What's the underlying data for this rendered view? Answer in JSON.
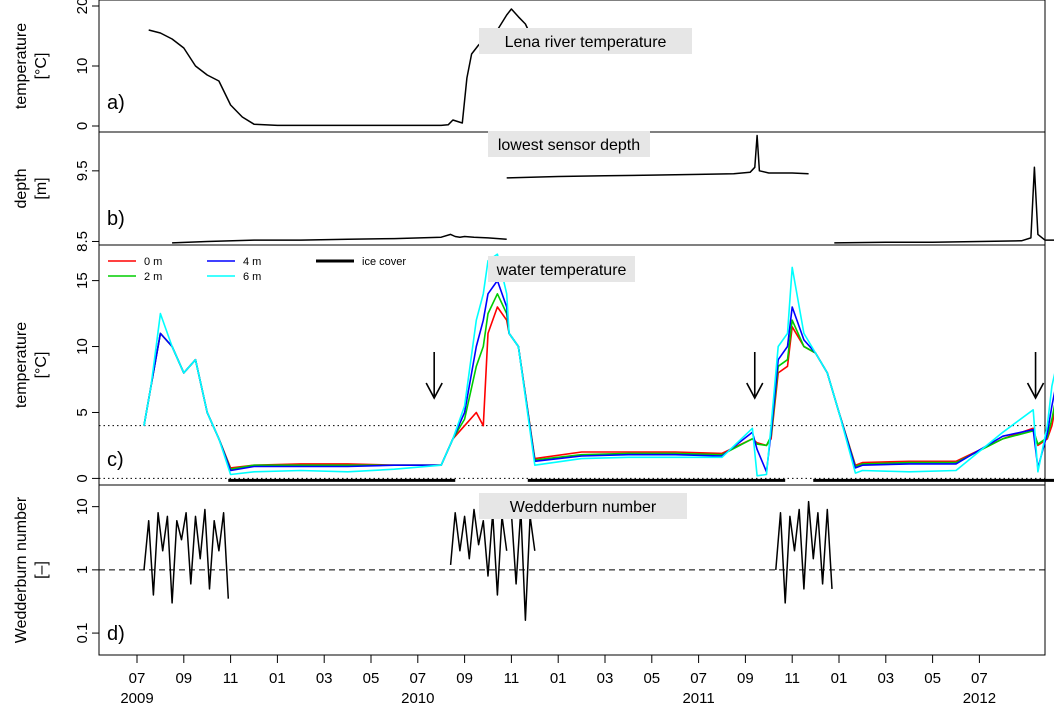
{
  "chart_data": [
    {
      "panel": "a)",
      "type": "line",
      "title": "Lena river temperature",
      "ylabel_lines": [
        "temperature",
        "[°C]"
      ],
      "yticks": [
        "0",
        "10",
        "20"
      ],
      "ylim": [
        -1,
        21
      ],
      "series": [
        {
          "color": "#000000",
          "x": [
            6.5,
            7.0,
            7.5,
            8.0,
            8.5,
            9.0,
            9.5,
            10.0,
            10.5,
            11.0,
            12.0,
            14.0,
            16.0,
            18.0,
            19.0,
            19.3,
            19.5,
            19.9,
            20.1,
            20.3,
            20.6,
            21.0,
            21.4,
            21.8,
            22.0,
            22.3,
            22.6,
            22.9
          ],
          "y": [
            16,
            15.5,
            14.5,
            13,
            10,
            8.5,
            7.5,
            3.5,
            1.5,
            0.3,
            0.1,
            0.1,
            0.1,
            0.1,
            0.1,
            0.2,
            1.0,
            0.5,
            8,
            12,
            13.5,
            15,
            16,
            18.5,
            19.5,
            18.2,
            17,
            14.5
          ]
        }
      ]
    },
    {
      "panel": "b)",
      "type": "line",
      "title": "lowest sensor depth",
      "ylabel_lines": [
        "depth",
        "[m]"
      ],
      "yticks": [
        "8.5",
        "9.5"
      ],
      "ylim": [
        8.45,
        10.05
      ],
      "series": [
        {
          "color": "#000000",
          "x": [
            7.5,
            9,
            11,
            13,
            15,
            17,
            19,
            19.4,
            19.6,
            19.8,
            20.0,
            20.4,
            21,
            21.8
          ],
          "y": [
            8.48,
            8.5,
            8.52,
            8.52,
            8.53,
            8.54,
            8.56,
            8.6,
            8.57,
            8.56,
            8.57,
            8.56,
            8.55,
            8.53
          ]
        },
        {
          "color": "#000000",
          "x": [
            21.8,
            24,
            26,
            28,
            30,
            31.5,
            32.2,
            32.4,
            32.5,
            32.6,
            33,
            34,
            34.7
          ],
          "y": [
            9.4,
            9.42,
            9.43,
            9.44,
            9.45,
            9.46,
            9.48,
            9.55,
            10.0,
            9.5,
            9.47,
            9.47,
            9.46
          ]
        },
        {
          "color": "#000000",
          "x": [
            35.8,
            38,
            40,
            42,
            43.8,
            44.2,
            44.35,
            44.5,
            44.8,
            46,
            47.4
          ],
          "y": [
            8.48,
            8.49,
            8.49,
            8.5,
            8.51,
            8.55,
            9.55,
            8.6,
            8.52,
            8.52,
            8.51
          ]
        }
      ]
    },
    {
      "panel": "c)",
      "type": "line",
      "title": "water temperature",
      "ylabel_lines": [
        "temperature",
        "[°C]"
      ],
      "yticks": [
        "0",
        "5",
        "10",
        "15"
      ],
      "ylim": [
        -0.5,
        17.7
      ],
      "hlines": [
        0,
        4
      ],
      "arrows_x": [
        18.7,
        32.4,
        44.4
      ],
      "ice_cover": [
        [
          9.9,
          19.6
        ],
        [
          22.7,
          33.7
        ],
        [
          34.9,
          45.7
        ]
      ],
      "legend": [
        {
          "label": "0 m",
          "color": "#ff0000"
        },
        {
          "label": "2 m",
          "color": "#00cd00"
        },
        {
          "label": "4 m",
          "color": "#0000ff"
        },
        {
          "label": "6 m",
          "color": "#00ffff"
        },
        {
          "label": "ice cover",
          "color": "#000000"
        }
      ],
      "series": [
        {
          "name": "0 m",
          "color": "#ff0000",
          "x": [
            6.3,
            6.6,
            7.0,
            7.5,
            8.0,
            8.5,
            9.0,
            9.5,
            10.0,
            11,
            13,
            15,
            17,
            19.0,
            19.5,
            20.0,
            20.5,
            20.8,
            21.0,
            21.4,
            21.8,
            21.9,
            22.3,
            23.0,
            25,
            27,
            29,
            31,
            32.3,
            32.5,
            32.9,
            33.1,
            33.4,
            33.8,
            34.0,
            34.5,
            35.0,
            35.5,
            36.0,
            36.7,
            37,
            39,
            41,
            43,
            44.3,
            44.5,
            44.9,
            45.1,
            45.6,
            46.0,
            46.6,
            47.0,
            47.4
          ],
          "y": [
            4,
            7,
            11,
            10,
            8,
            9,
            5,
            3,
            0.8,
            1.0,
            1.1,
            1.1,
            1.0,
            1.0,
            3.0,
            4.0,
            5.0,
            4.0,
            11,
            13,
            12,
            11,
            10,
            1.5,
            2.0,
            2.0,
            2.0,
            1.9,
            3.0,
            2.7,
            2.5,
            3.0,
            8,
            8.5,
            11.5,
            10,
            9.5,
            8,
            5,
            1.0,
            1.2,
            1.3,
            1.3,
            3.0,
            3.8,
            2.5,
            3.0,
            4.0,
            8.5,
            11,
            12.5,
            12.5,
            11.0
          ]
        },
        {
          "name": "2 m",
          "color": "#00cd00",
          "x": [
            6.3,
            6.6,
            7.0,
            7.5,
            8.0,
            8.5,
            9.0,
            9.5,
            10.0,
            11,
            13,
            15,
            17,
            19.0,
            19.5,
            20.0,
            20.5,
            20.8,
            21.0,
            21.4,
            21.8,
            21.9,
            22.3,
            23.0,
            25,
            27,
            29,
            31,
            32.3,
            32.5,
            32.9,
            33.1,
            33.4,
            33.8,
            34.0,
            34.5,
            35.0,
            35.5,
            36.0,
            36.7,
            37,
            39,
            41,
            43,
            44.3,
            44.5,
            44.9,
            45.1,
            45.6,
            46.0,
            46.6,
            47.0,
            47.4
          ],
          "y": [
            4,
            7,
            11,
            10,
            8,
            9,
            5,
            3,
            0.7,
            1.0,
            1.0,
            1.0,
            1.0,
            1.0,
            3.0,
            4.5,
            8.5,
            10,
            12.5,
            14,
            12.5,
            11,
            10,
            1.4,
            1.8,
            1.9,
            1.9,
            1.8,
            3.0,
            2.6,
            2.5,
            3.2,
            8.5,
            9,
            12,
            10,
            9.5,
            8,
            5,
            0.9,
            1.1,
            1.2,
            1.2,
            3.0,
            3.6,
            2.6,
            3.1,
            4.5,
            9,
            11.5,
            13,
            12.5,
            11.0
          ]
        },
        {
          "name": "4 m",
          "color": "#0000ff",
          "x": [
            6.3,
            6.6,
            7.0,
            7.5,
            8.0,
            8.5,
            9.0,
            9.5,
            10.0,
            11,
            13,
            15,
            17,
            19.0,
            19.5,
            20.0,
            20.5,
            20.8,
            21.0,
            21.4,
            21.8,
            21.9,
            22.3,
            23.0,
            25,
            27,
            29,
            31,
            32.3,
            32.5,
            32.9,
            33.1,
            33.4,
            33.8,
            34.0,
            34.5,
            35.0,
            35.5,
            36.0,
            36.7,
            37,
            39,
            41,
            43,
            44.3,
            44.5,
            44.9,
            45.1,
            45.6,
            46.0,
            46.6,
            47.0,
            47.4
          ],
          "y": [
            4,
            7,
            11,
            10,
            8,
            9,
            5,
            3,
            0.6,
            0.9,
            0.9,
            0.9,
            1.0,
            1.0,
            3.0,
            5.0,
            10,
            12,
            14,
            15,
            13,
            11,
            10,
            1.3,
            1.7,
            1.8,
            1.8,
            1.7,
            3.5,
            2.2,
            0.5,
            3.5,
            9,
            10,
            13,
            10.5,
            9.5,
            8,
            5,
            0.8,
            1.0,
            1.1,
            1.1,
            3.2,
            3.7,
            0.8,
            3.4,
            5.5,
            10,
            12.5,
            13.5,
            12.5,
            11.0
          ]
        },
        {
          "name": "6 m",
          "color": "#00ffff",
          "x": [
            6.3,
            6.6,
            7.0,
            7.5,
            8.0,
            8.5,
            9.0,
            9.5,
            10.0,
            11,
            13,
            15,
            17,
            19.0,
            19.5,
            20.0,
            20.5,
            20.8,
            21.0,
            21.4,
            21.8,
            21.9,
            22.3,
            23.0,
            25,
            27,
            29,
            31,
            32.3,
            32.5,
            32.9,
            33.1,
            33.4,
            33.8,
            34.0,
            34.5,
            35.0,
            35.5,
            36.0,
            36.7,
            37,
            39,
            41,
            43,
            44.3,
            44.5,
            44.9,
            45.1,
            45.6,
            46.0,
            46.6,
            47.0,
            47.4
          ],
          "y": [
            4,
            7,
            12.5,
            10,
            8,
            9,
            5,
            3,
            0.3,
            0.5,
            0.6,
            0.5,
            0.7,
            1.0,
            3.0,
            5.5,
            12,
            14,
            16.5,
            17,
            14,
            11,
            10,
            1.0,
            1.5,
            1.6,
            1.6,
            1.6,
            3.8,
            0.2,
            0.3,
            4.0,
            10,
            11,
            16,
            11,
            9.5,
            8,
            5,
            0.4,
            0.6,
            0.5,
            0.6,
            3.5,
            5.2,
            0.5,
            4.0,
            7.0,
            11,
            14,
            15.5,
            13,
            11.0
          ]
        }
      ]
    },
    {
      "panel": "d)",
      "type": "line",
      "title": "Wedderburn number",
      "ylabel_lines": [
        "Wedderburn number",
        "[–]"
      ],
      "yscale": "log",
      "yticks": [
        "0.1",
        "1",
        "10"
      ],
      "ylim": [
        0.045,
        22
      ],
      "hlines": [
        1
      ],
      "series": [
        {
          "color": "#000000",
          "x": [
            6.3,
            6.5,
            6.7,
            6.9,
            7.1,
            7.3,
            7.5,
            7.7,
            7.9,
            8.1,
            8.3,
            8.5,
            8.7,
            8.9,
            9.1,
            9.3,
            9.5,
            9.7,
            9.9
          ],
          "y": [
            1.0,
            6,
            0.4,
            8,
            2,
            7,
            0.3,
            6,
            3,
            8,
            0.6,
            7,
            1.5,
            9,
            0.5,
            6,
            2,
            8,
            0.35
          ]
        },
        {
          "color": "#000000",
          "x": [
            19.4,
            19.6,
            19.8,
            20.0,
            20.2,
            20.4,
            20.6,
            20.8,
            21.0,
            21.2,
            21.4,
            21.6,
            21.8
          ],
          "y": [
            1.2,
            8,
            2,
            7,
            1.5,
            9,
            2.5,
            6,
            0.8,
            8,
            0.4,
            7,
            2
          ]
        },
        {
          "color": "#000000",
          "x": [
            22.0,
            22.2,
            22.4,
            22.6,
            22.8,
            23.0
          ],
          "y": [
            8,
            0.6,
            9,
            0.16,
            7,
            2
          ]
        },
        {
          "color": "#000000",
          "x": [
            33.3,
            33.5,
            33.7,
            33.9,
            34.1,
            34.3,
            34.5,
            34.7,
            34.9,
            35.1,
            35.3,
            35.5,
            35.7
          ],
          "y": [
            1.0,
            8,
            0.3,
            7,
            2,
            9,
            0.5,
            12,
            1.5,
            8,
            0.6,
            9,
            0.5
          ]
        }
      ]
    }
  ],
  "x_axis": {
    "month_ticks": [
      "07",
      "09",
      "11",
      "01",
      "03",
      "05",
      "07",
      "09",
      "11",
      "01",
      "03",
      "05",
      "07",
      "09",
      "11",
      "01",
      "03",
      "05",
      "07"
    ],
    "year_labels": [
      {
        "label": "2009",
        "tick": 0
      },
      {
        "label": "2010",
        "tick": 6
      },
      {
        "label": "2011",
        "tick": 12
      },
      {
        "label": "2012",
        "tick": 18
      }
    ]
  },
  "colors": {
    "red": "#ff0000",
    "green": "#00cd00",
    "blue": "#0000ff",
    "cyan": "#00ffff",
    "title_box": "#e6e6e6"
  }
}
